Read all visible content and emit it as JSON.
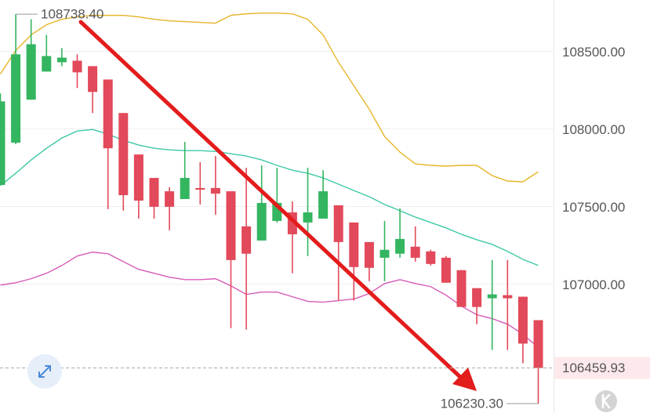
{
  "chart_data": {
    "type": "candlestick",
    "up_color": "#34b560",
    "down_color": "#e2495a",
    "ylim": [
      106170,
      108830
    ],
    "yticks": [
      {
        "value": 108500,
        "label": "108500.00"
      },
      {
        "value": 108000,
        "label": "108000.00"
      },
      {
        "value": 107500,
        "label": "107500.00"
      },
      {
        "value": 107000,
        "label": "107000.00"
      }
    ],
    "grid": true,
    "open": [
      107639,
      107911,
      108188,
      108369,
      108429,
      108439,
      108404,
      108318,
      108102,
      107835,
      107684,
      107598,
      107548,
      107619,
      107619,
      107598,
      107372,
      107281,
      107407,
      107462,
      107397,
      107422,
      107508,
      107397,
      107271,
      107170,
      107196,
      107241,
      107211,
      107170,
      107090,
      106974,
      106909,
      106929,
      106919,
      106768
    ],
    "high": [
      108228,
      108738.4,
      108706,
      108605,
      108520,
      108480,
      108404,
      108318,
      108102,
      107835,
      107684,
      107624,
      107916,
      107785,
      107825,
      107598,
      107749,
      107765,
      107749,
      107533,
      107749,
      107734,
      107508,
      107397,
      107271,
      107407,
      107488,
      107372,
      107221,
      107181,
      107090,
      106974,
      107155,
      107155,
      106919,
      106768
    ],
    "low": [
      107639,
      107901,
      108188,
      108369,
      108404,
      108263,
      108102,
      107483,
      107473,
      107422,
      107422,
      107347,
      107548,
      107513,
      107447,
      106717,
      106707,
      107281,
      107397,
      107070,
      107181,
      107422,
      106894,
      106894,
      107019,
      107019,
      107170,
      107145,
      107120,
      107009,
      106853,
      106742,
      106576,
      106576,
      106491,
      106230.3
    ],
    "close": [
      108177,
      108480,
      108545,
      108469,
      108459,
      108364,
      108238,
      107875,
      107573,
      107538,
      107498,
      107498,
      107684,
      107608,
      107583,
      107155,
      107196,
      107523,
      107523,
      107321,
      107462,
      107598,
      107271,
      107110,
      107105,
      107221,
      107291,
      107170,
      107130,
      107009,
      106853,
      106853,
      106934,
      106909,
      106617,
      106459.93
    ],
    "series": [
      {
        "color": "#e6b52a",
        "values": [
          108354,
          108505,
          108605,
          108671,
          108706,
          108721,
          108731,
          108731,
          108731,
          108721,
          108706,
          108696,
          108691,
          108686,
          108681,
          108731,
          108741,
          108746,
          108746,
          108741,
          108706,
          108605,
          108429,
          108278,
          108127,
          107951,
          107850,
          107775,
          107765,
          107760,
          107765,
          107765,
          107699,
          107664,
          107659,
          107724
        ]
      },
      {
        "color": "#3ec9a7",
        "values": [
          107634,
          107714,
          107800,
          107875,
          107941,
          107986,
          107996,
          107966,
          107926,
          107896,
          107875,
          107865,
          107860,
          107860,
          107855,
          107840,
          107825,
          107800,
          107765,
          107734,
          107714,
          107684,
          107644,
          107603,
          107563,
          107513,
          107473,
          107432,
          107397,
          107362,
          107321,
          107286,
          107256,
          107211,
          107160,
          107120
        ]
      },
      {
        "color": "#d65cb8",
        "values": [
          106994,
          107009,
          107035,
          107070,
          107120,
          107181,
          107206,
          107196,
          107145,
          107095,
          107070,
          107045,
          107029,
          107029,
          107035,
          106989,
          106934,
          106949,
          106949,
          106919,
          106889,
          106884,
          106894,
          106904,
          106939,
          107004,
          107029,
          107004,
          106984,
          106929,
          106858,
          106803,
          106778,
          106742,
          106677,
          106592
        ]
      }
    ],
    "annotations": [
      {
        "value": 108738.4,
        "label": "108738.40"
      },
      {
        "value": 106230.3,
        "label": "106230.30"
      }
    ],
    "last_price": 106459.93
  }
}
